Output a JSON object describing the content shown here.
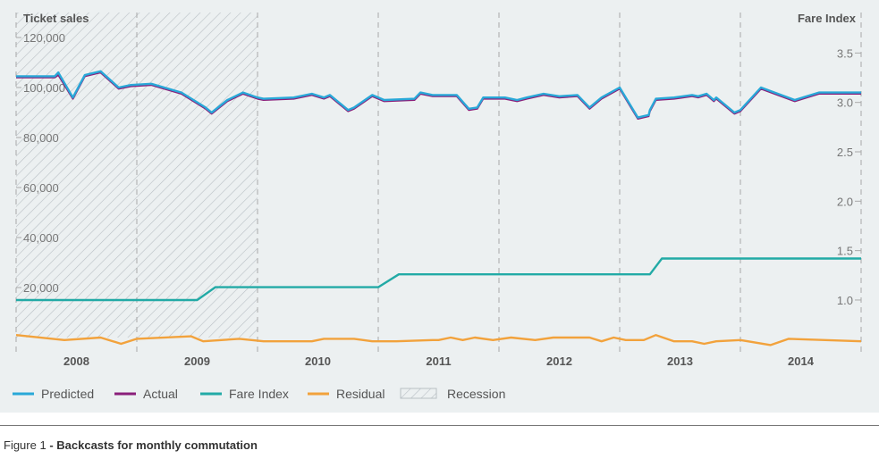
{
  "colors": {
    "panel_bg": "#ecf0f1",
    "predicted": "#29a8d8",
    "actual": "#8a1f7a",
    "fare_index": "#22aaa6",
    "residual": "#f2a23c",
    "recession_hatch": "#b9bfc4",
    "grid": "#a9a9a9",
    "axis_text": "#777777",
    "title_text": "#555555"
  },
  "caption": {
    "prefix": "Figure 1",
    "separator": " - ",
    "title": "Backcasts for monthly commutation"
  },
  "chart_data": {
    "type": "line",
    "title": "",
    "ylabel_left": "Ticket sales",
    "ylabel_right": "Fare Index",
    "left_axis": {
      "ticks": [
        "20,000",
        "40,000",
        "60,000",
        "80,000",
        "100,000",
        "120,000"
      ],
      "values": [
        20000,
        40000,
        60000,
        80000,
        100000,
        120000
      ]
    },
    "right_axis": {
      "ticks": [
        "1.0",
        "1.5",
        "2.0",
        "2.5",
        "3.0",
        "3.5"
      ],
      "values": [
        1.0,
        1.5,
        2.0,
        2.5,
        3.0,
        3.5
      ]
    },
    "x_labels": [
      "2008",
      "2009",
      "2010",
      "2011",
      "2012",
      "2013",
      "2014"
    ],
    "recession": {
      "label": "Recession",
      "from": "2007.5",
      "to": "2009.5"
    },
    "legend": [
      "Predicted",
      "Actual",
      "Fare Index",
      "Residual",
      "Recession"
    ],
    "legend_position": "bottom-left",
    "series": [
      {
        "name": "Predicted",
        "axis": "left",
        "x": [
          2007.5,
          2007.82,
          2007.85,
          2007.97,
          2008.07,
          2008.2,
          2008.35,
          2008.45,
          2008.62,
          2008.87,
          2009.07,
          2009.12,
          2009.25,
          2009.38,
          2009.5,
          2009.55,
          2009.8,
          2009.95,
          2010.05,
          2010.1,
          2010.25,
          2010.3,
          2010.45,
          2010.55,
          2010.8,
          2010.85,
          2010.95,
          2011.15,
          2011.25,
          2011.32,
          2011.37,
          2011.55,
          2011.65,
          2011.73,
          2011.87,
          2012.0,
          2012.15,
          2012.25,
          2012.35,
          2012.5,
          2012.65,
          2012.74,
          2012.75,
          2012.8,
          2012.95,
          2013.1,
          2013.15,
          2013.22,
          2013.28,
          2013.3,
          2013.45,
          2013.5,
          2013.67,
          2013.95,
          2014.15,
          2014.25,
          2014.5
        ],
        "values": [
          104500,
          104500,
          106000,
          96000,
          105000,
          106500,
          100000,
          101000,
          101500,
          98000,
          92000,
          90000,
          95000,
          98000,
          96000,
          95500,
          96000,
          97500,
          96000,
          97000,
          91000,
          92000,
          97000,
          95000,
          95500,
          98000,
          97000,
          97000,
          91500,
          92000,
          96000,
          96000,
          95000,
          96000,
          97500,
          96500,
          97000,
          92000,
          96000,
          100000,
          88000,
          89000,
          91000,
          95500,
          96000,
          97000,
          96500,
          97500,
          95000,
          96000,
          90000,
          91000,
          100000,
          95000,
          98000,
          98000,
          98000
        ]
      },
      {
        "name": "Actual",
        "axis": "left",
        "x": [
          2007.5,
          2007.82,
          2007.85,
          2007.97,
          2008.07,
          2008.2,
          2008.35,
          2008.45,
          2008.62,
          2008.87,
          2009.07,
          2009.12,
          2009.25,
          2009.38,
          2009.5,
          2009.55,
          2009.8,
          2009.95,
          2010.05,
          2010.1,
          2010.25,
          2010.3,
          2010.45,
          2010.55,
          2010.8,
          2010.85,
          2010.95,
          2011.15,
          2011.25,
          2011.32,
          2011.37,
          2011.55,
          2011.65,
          2011.73,
          2011.87,
          2012.0,
          2012.15,
          2012.25,
          2012.35,
          2012.5,
          2012.65,
          2012.74,
          2012.75,
          2012.8,
          2012.95,
          2013.1,
          2013.15,
          2013.22,
          2013.28,
          2013.3,
          2013.45,
          2013.5,
          2013.67,
          2013.95,
          2014.15,
          2014.25,
          2014.5
        ],
        "values": [
          104000,
          104000,
          105000,
          95500,
          104500,
          106000,
          99500,
          100500,
          101000,
          97500,
          91500,
          89500,
          94500,
          97500,
          95500,
          95000,
          95500,
          97000,
          95500,
          96500,
          90500,
          91500,
          96500,
          94500,
          95000,
          97500,
          96500,
          96500,
          91000,
          91500,
          95500,
          95500,
          94500,
          95500,
          97000,
          96000,
          96500,
          91500,
          95500,
          99500,
          87500,
          88500,
          90500,
          95000,
          95500,
          96500,
          96000,
          97000,
          94500,
          95500,
          89500,
          90500,
          99500,
          94500,
          97500,
          97500,
          97500
        ]
      },
      {
        "name": "Fare Index",
        "axis": "right",
        "x": [
          2007.5,
          2008.5,
          2009.0,
          2009.15,
          2010.5,
          2010.67,
          2011.5,
          2012.75,
          2012.85,
          2014.5
        ],
        "values": [
          1.0,
          1.0,
          1.0,
          1.13,
          1.13,
          1.26,
          1.26,
          1.26,
          1.42,
          1.42
        ]
      },
      {
        "name": "Residual",
        "axis": "left",
        "x": [
          2007.5,
          2007.9,
          2008.2,
          2008.37,
          2008.5,
          2008.95,
          2009.05,
          2009.35,
          2009.55,
          2009.95,
          2010.05,
          2010.3,
          2010.45,
          2010.65,
          2010.95,
          2011.0,
          2011.1,
          2011.2,
          2011.3,
          2011.45,
          2011.6,
          2011.8,
          2011.95,
          2012.25,
          2012.35,
          2012.45,
          2012.55,
          2012.7,
          2012.8,
          2012.95,
          2013.1,
          2013.2,
          2013.3,
          2013.5,
          2013.75,
          2013.9,
          2014.5
        ],
        "values": [
          1000,
          -1000,
          0,
          -2500,
          -500,
          500,
          -1500,
          -500,
          -1500,
          -1500,
          -500,
          -500,
          -1500,
          -1500,
          -1000,
          -1000,
          0,
          -1000,
          0,
          -1000,
          0,
          -1000,
          0,
          0,
          -1500,
          0,
          -1000,
          -1000,
          1000,
          -1500,
          -1500,
          -2500,
          -1500,
          -1000,
          -3000,
          -500,
          -1500
        ]
      }
    ],
    "xlim": [
      2007.5,
      2014.5
    ],
    "ylim_left": [
      0,
      130000
    ],
    "ylim_right": [
      0.62,
      3.91
    ],
    "grid": {
      "vertical_dashed": true,
      "horizontal": false
    }
  }
}
